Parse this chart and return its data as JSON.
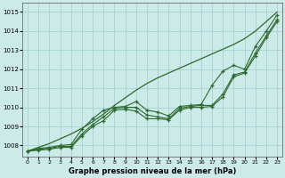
{
  "xlabel": "Graphe pression niveau de la mer (hPa)",
  "xlim": [
    -0.5,
    23.5
  ],
  "ylim": [
    1007.4,
    1015.5
  ],
  "yticks": [
    1008,
    1009,
    1010,
    1011,
    1012,
    1013,
    1014,
    1015
  ],
  "xticks": [
    0,
    1,
    2,
    3,
    4,
    5,
    6,
    7,
    8,
    9,
    10,
    11,
    12,
    13,
    14,
    15,
    16,
    17,
    18,
    19,
    20,
    21,
    22,
    23
  ],
  "background_color": "#cceae8",
  "grid_color": "#9ecece",
  "line_color": "#2d6a2d",
  "series_with_markers": [
    [
      1007.7,
      1007.85,
      1007.9,
      1008.0,
      1008.05,
      1008.85,
      1009.4,
      1009.85,
      1010.0,
      1010.05,
      1010.3,
      1009.85,
      1009.75,
      1009.55,
      1010.05,
      1010.1,
      1010.15,
      1011.15,
      1011.9,
      1012.2,
      1012.0,
      1013.2,
      1014.0,
      1014.85
    ],
    [
      1007.7,
      1007.8,
      1007.85,
      1007.95,
      1007.95,
      1008.6,
      1009.1,
      1009.5,
      1009.95,
      1010.0,
      1010.0,
      1009.6,
      1009.5,
      1009.4,
      1009.95,
      1010.05,
      1010.1,
      1010.1,
      1010.7,
      1011.7,
      1011.85,
      1012.85,
      1013.75,
      1014.6
    ],
    [
      1007.7,
      1007.75,
      1007.8,
      1007.9,
      1007.9,
      1008.5,
      1009.0,
      1009.3,
      1009.85,
      1009.9,
      1009.8,
      1009.4,
      1009.4,
      1009.35,
      1009.85,
      1010.0,
      1010.0,
      1010.05,
      1010.55,
      1011.6,
      1011.8,
      1012.7,
      1013.65,
      1014.5
    ]
  ],
  "series_smooth": [
    1007.7,
    1007.9,
    1008.1,
    1008.35,
    1008.6,
    1008.9,
    1009.25,
    1009.65,
    1010.1,
    1010.5,
    1010.9,
    1011.25,
    1011.55,
    1011.8,
    1012.05,
    1012.3,
    1012.55,
    1012.8,
    1013.05,
    1013.3,
    1013.6,
    1014.0,
    1014.5,
    1015.0
  ]
}
